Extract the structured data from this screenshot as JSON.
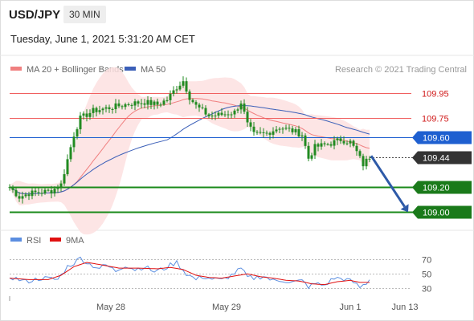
{
  "header": {
    "symbol": "USD/JPY",
    "timeframe": "30 MIN",
    "timestamp": "Tuesday, June 1, 2021 5:31:20 AM CET"
  },
  "legend": {
    "ma20_label": "MA 20 + Bollinger Bands",
    "ma50_label": "MA 50",
    "copyright": "Research © 2021 Trading Central",
    "rsi_label": "RSI",
    "ma9_label": "9MA"
  },
  "colors": {
    "bollinger_fill": "#fde0e0",
    "ma20": "#f08080",
    "ma50": "#3b5fb8",
    "candle": "#228b22",
    "resistance": "#f06060",
    "pivot": "#1e5fd0",
    "support": "#1a8a1a",
    "arrow": "#2e5aa8",
    "rsi": "#5b8ee0",
    "rsi_ma": "#e01010"
  },
  "chart_data": [
    {
      "type": "candlestick",
      "title": "USD/JPY",
      "timeframe": "30 MIN",
      "x_tick_labels": [
        "May 28",
        "May 29",
        "Jun 1",
        "Jun 13"
      ],
      "ylim": [
        108.95,
        110.1
      ],
      "price_path": [
        [
          0,
          109.2
        ],
        [
          3,
          109.12
        ],
        [
          6,
          109.15
        ],
        [
          10,
          109.16
        ],
        [
          13,
          109.17
        ],
        [
          16,
          109.22
        ],
        [
          18,
          109.42
        ],
        [
          20,
          109.62
        ],
        [
          22,
          109.75
        ],
        [
          26,
          109.81
        ],
        [
          30,
          109.83
        ],
        [
          34,
          109.85
        ],
        [
          38,
          109.87
        ],
        [
          42,
          109.88
        ],
        [
          46,
          109.86
        ],
        [
          49,
          109.9
        ],
        [
          52,
          110.0
        ],
        [
          54,
          110.05
        ],
        [
          56,
          109.92
        ],
        [
          58,
          109.85
        ],
        [
          62,
          109.77
        ],
        [
          66,
          109.78
        ],
        [
          70,
          109.8
        ],
        [
          72,
          109.88
        ],
        [
          74,
          109.7
        ],
        [
          76,
          109.62
        ],
        [
          80,
          109.63
        ],
        [
          84,
          109.68
        ],
        [
          88,
          109.65
        ],
        [
          91,
          109.62
        ],
        [
          93,
          109.43
        ],
        [
          95,
          109.52
        ],
        [
          100,
          109.55
        ],
        [
          103,
          109.58
        ],
        [
          106,
          109.56
        ],
        [
          108,
          109.48
        ],
        [
          110,
          109.38
        ],
        [
          112,
          109.44
        ]
      ],
      "forecast_arrow": {
        "from": [
          112,
          109.45
        ],
        "to": [
          122,
          109.0
        ]
      },
      "horizontal_levels": [
        {
          "label": "109.95",
          "value": 109.95,
          "kind": "resistance"
        },
        {
          "label": "109.75",
          "value": 109.75,
          "kind": "resistance"
        },
        {
          "label": "109.60",
          "value": 109.6,
          "kind": "pivot"
        },
        {
          "label": "109.44",
          "value": 109.44,
          "kind": "last"
        },
        {
          "label": "109.20",
          "value": 109.2,
          "kind": "support"
        },
        {
          "label": "109.00",
          "value": 109.0,
          "kind": "support"
        }
      ],
      "series": [
        {
          "name": "MA 20 + Bollinger Bands"
        },
        {
          "name": "MA 50"
        }
      ],
      "grid": false
    },
    {
      "type": "line",
      "ylim": [
        20,
        85
      ],
      "y_tick_labels": [
        "70",
        "50",
        "30"
      ],
      "y_ticks": [
        70,
        50,
        30
      ],
      "series": [
        {
          "name": "RSI",
          "values": [
            [
              0,
              46
            ],
            [
              5,
              39
            ],
            [
              10,
              44
            ],
            [
              15,
              42
            ],
            [
              18,
              60
            ],
            [
              20,
              65
            ],
            [
              22,
              72
            ],
            [
              25,
              63
            ],
            [
              28,
              58
            ],
            [
              30,
              62
            ],
            [
              33,
              54
            ],
            [
              36,
              62
            ],
            [
              39,
              56
            ],
            [
              42,
              60
            ],
            [
              45,
              53
            ],
            [
              48,
              57
            ],
            [
              50,
              62
            ],
            [
              52,
              66
            ],
            [
              55,
              50
            ],
            [
              58,
              42
            ],
            [
              60,
              46
            ],
            [
              63,
              43
            ],
            [
              66,
              41
            ],
            [
              69,
              48
            ],
            [
              72,
              57
            ],
            [
              74,
              45
            ],
            [
              76,
              44
            ],
            [
              79,
              47
            ],
            [
              82,
              40
            ],
            [
              85,
              41
            ],
            [
              88,
              38
            ],
            [
              91,
              40
            ],
            [
              93,
              32
            ],
            [
              95,
              36
            ],
            [
              98,
              34
            ],
            [
              101,
              44
            ],
            [
              104,
              43
            ],
            [
              107,
              38
            ],
            [
              109,
              31
            ],
            [
              111,
              37
            ],
            [
              112,
              42
            ]
          ]
        },
        {
          "name": "9MA",
          "values": [
            [
              0,
              44
            ],
            [
              6,
              42
            ],
            [
              12,
              42
            ],
            [
              16,
              48
            ],
            [
              20,
              60
            ],
            [
              24,
              66
            ],
            [
              28,
              63
            ],
            [
              34,
              58
            ],
            [
              40,
              58
            ],
            [
              46,
              57
            ],
            [
              50,
              59
            ],
            [
              54,
              56
            ],
            [
              58,
              48
            ],
            [
              62,
              45
            ],
            [
              66,
              44
            ],
            [
              70,
              47
            ],
            [
              74,
              50
            ],
            [
              78,
              46
            ],
            [
              82,
              44
            ],
            [
              86,
              41
            ],
            [
              90,
              40
            ],
            [
              94,
              36
            ],
            [
              98,
              35
            ],
            [
              102,
              39
            ],
            [
              106,
              41
            ],
            [
              109,
              38
            ],
            [
              112,
              38
            ]
          ]
        }
      ]
    }
  ]
}
